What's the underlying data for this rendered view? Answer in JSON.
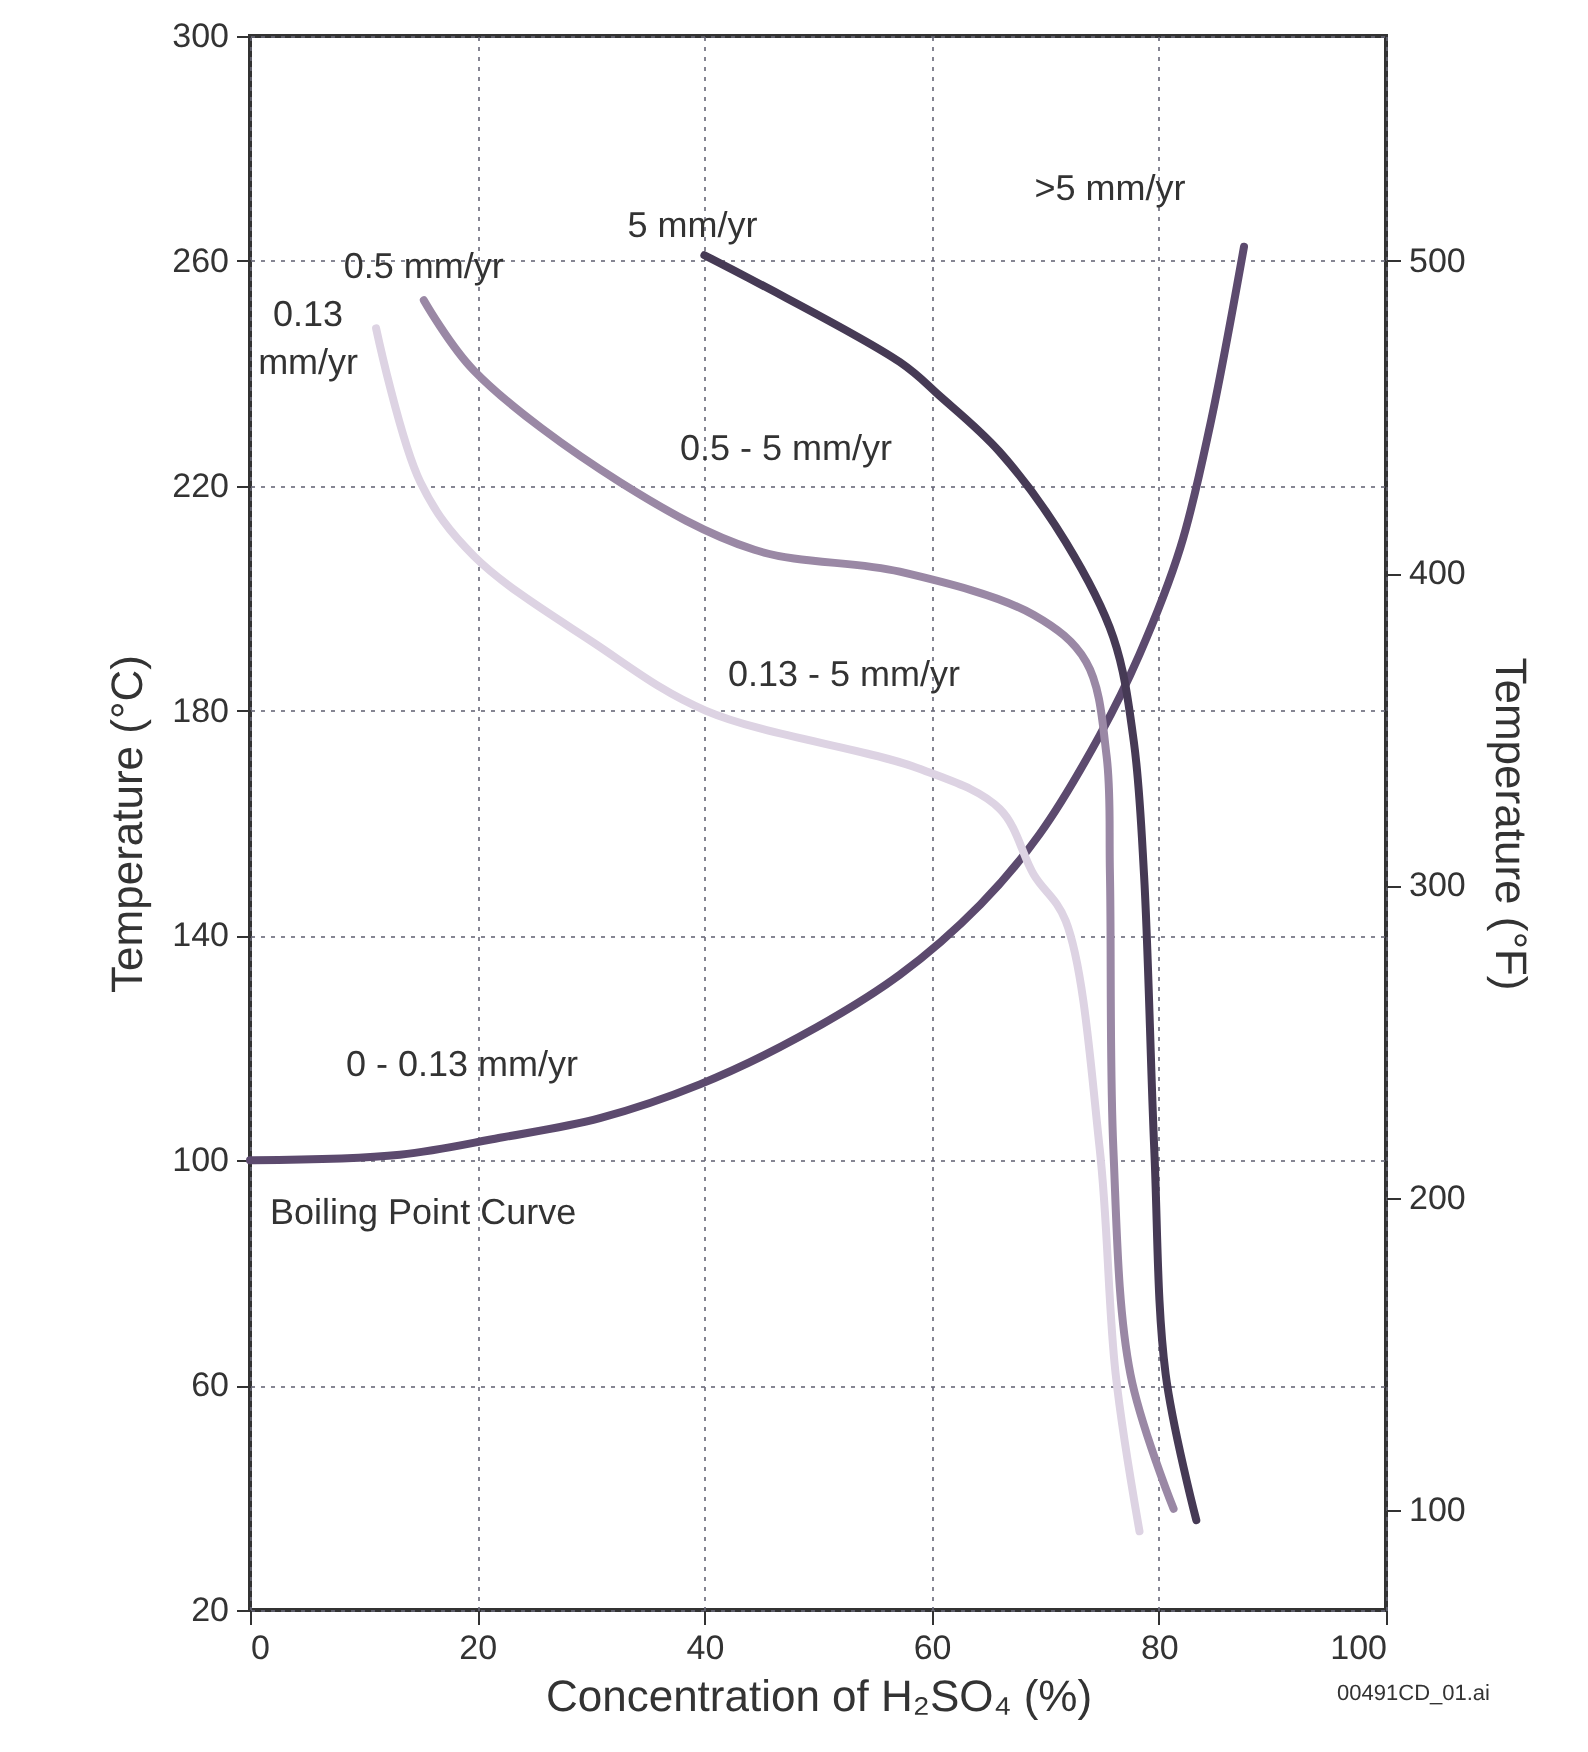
{
  "chart_data": {
    "type": "line",
    "xlabel": "Concentration of H₂SO₄ (%)",
    "ylabel": "Temperature (°C)",
    "y2label": "Temperature (°F)",
    "xlim": [
      0,
      100
    ],
    "xticks": [
      0,
      20,
      40,
      60,
      80,
      100
    ],
    "ylim": [
      20,
      300
    ],
    "yticks": [
      20,
      60,
      100,
      140,
      180,
      220,
      260,
      300
    ],
    "y2lim": [
      68,
      572
    ],
    "y2ticks": [
      100,
      200,
      300,
      400,
      500
    ],
    "grid": true,
    "series": [
      {
        "name": "Boiling Point Curve",
        "color": "#5c4a6e",
        "x": [
          0,
          13.2,
          22,
          30.8,
          39.6,
          48.4,
          57.2,
          64.3,
          69.5,
          74.8,
          78.3,
          81.9,
          84.5,
          87.5
        ],
        "values": [
          100,
          101,
          104,
          107.5,
          113.5,
          122,
          133,
          145.5,
          158,
          175.6,
          190,
          209,
          230.6,
          262.5
        ]
      },
      {
        "name": "5 mm/yr",
        "color": "#463a55",
        "x": [
          40,
          57.2,
          60.7,
          66,
          71.8,
          76,
          77.8,
          78.7,
          79.6,
          80.6,
          83.3
        ],
        "values": [
          261,
          242,
          236,
          226,
          210,
          193,
          174.5,
          150.8,
          102,
          62,
          36
        ]
      },
      {
        "name": "0.5 mm/yr",
        "color": "#9a88a5",
        "x": [
          15.3,
          19.7,
          32.6,
          44.4,
          57.2,
          69,
          73.6,
          75.4,
          75.7,
          76,
          77.5,
          81.3
        ],
        "values": [
          253,
          240.5,
          220.6,
          208.6,
          204.7,
          197,
          188.7,
          172,
          150.8,
          102,
          62,
          38
        ]
      },
      {
        "name": "0.13 mm/yr",
        "color": "#ddd3e3",
        "x": [
          11.1,
          15,
          19.7,
          30.3,
          40.1,
          59,
          66,
          69,
          71.8,
          74.8,
          76.2,
          78.3
        ],
        "values": [
          248,
          220.6,
          207.5,
          192,
          180,
          169.6,
          162.5,
          150.8,
          142.6,
          102,
          62,
          34
        ]
      }
    ],
    "annotations": [
      ">5 mm/yr",
      "0.5 - 5 mm/yr",
      "0.13 - 5 mm/yr",
      "0 - 0.13 mm/yr",
      "00491CD_01.ai"
    ]
  }
}
